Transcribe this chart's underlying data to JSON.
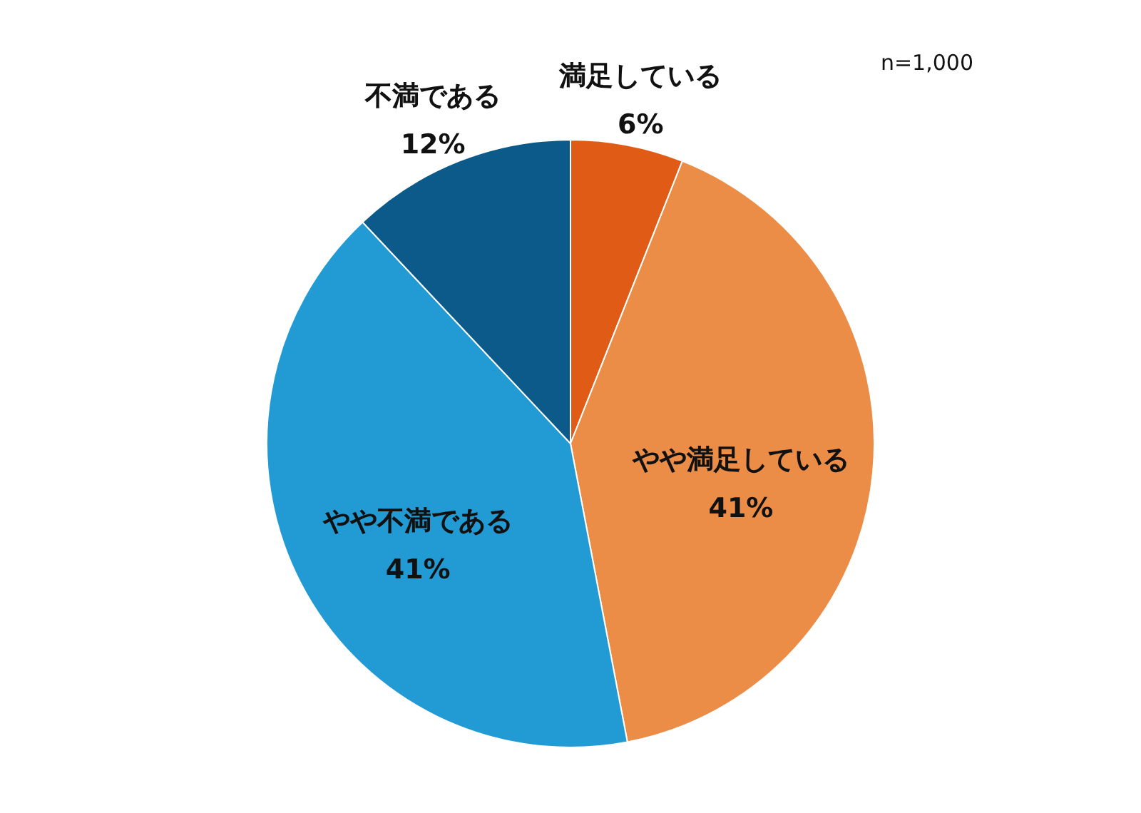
{
  "chart_data": {
    "type": "pie",
    "categories": [
      "満足している",
      "やや満足している",
      "やや不満である",
      "不満である"
    ],
    "values": [
      6,
      41,
      41,
      12
    ],
    "colors": [
      "#e05b16",
      "#eb8c47",
      "#229bd5",
      "#0c5a8a"
    ],
    "value_labels": [
      "6%",
      "41%",
      "41%",
      "12%"
    ],
    "annotations": [
      "n=1,000"
    ],
    "legend": false
  }
}
